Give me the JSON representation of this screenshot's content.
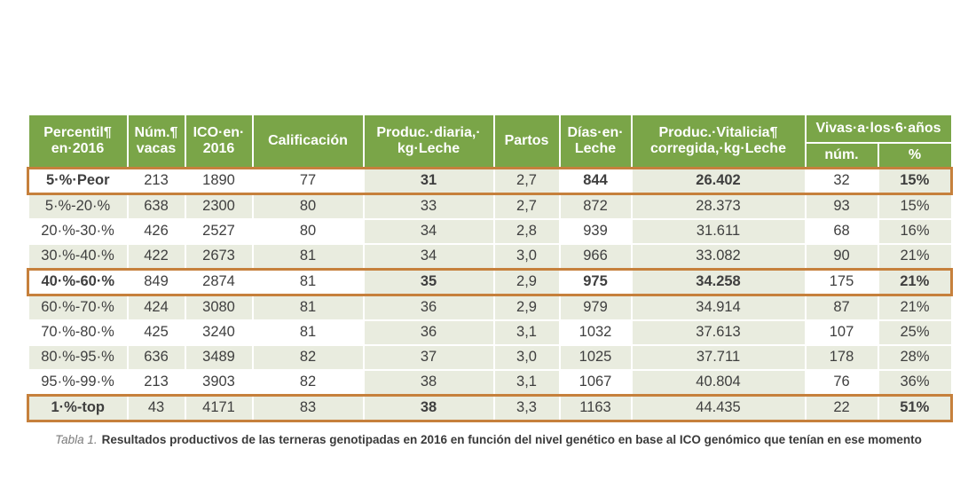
{
  "table": {
    "header": {
      "columns": [
        "Percentil¶\nen·2016",
        "Núm.¶\nvacas",
        "ICO·en·\n2016",
        "Calificación",
        "Produc.·diaria,·\nkg·Leche",
        "Partos",
        "Días·en·\nLeche",
        "Produc.·Vitalicia¶\ncorregida,·kg·Leche"
      ],
      "group": "Vivas·a·los·6·años",
      "sub": [
        "núm.",
        "%"
      ]
    },
    "accent_columns": [
      4,
      5,
      7,
      9
    ],
    "rows": [
      {
        "cells": [
          "5·%·Peor",
          "213",
          "1890",
          "77",
          "31",
          "2,7",
          "844",
          "26.402",
          "32",
          "15%"
        ],
        "highlighted": true,
        "bold_columns": [
          0,
          4,
          6,
          7,
          9
        ]
      },
      {
        "cells": [
          "5·%-20·%",
          "638",
          "2300",
          "80",
          "33",
          "2,7",
          "872",
          "28.373",
          "93",
          "15%"
        ],
        "highlighted": false,
        "bold_columns": []
      },
      {
        "cells": [
          "20·%-30·%",
          "426",
          "2527",
          "80",
          "34",
          "2,8",
          "939",
          "31.611",
          "68",
          "16%"
        ],
        "highlighted": false,
        "bold_columns": []
      },
      {
        "cells": [
          "30·%-40·%",
          "422",
          "2673",
          "81",
          "34",
          "3,0",
          "966",
          "33.082",
          "90",
          "21%"
        ],
        "highlighted": false,
        "bold_columns": []
      },
      {
        "cells": [
          "40·%-60·%",
          "849",
          "2874",
          "81",
          "35",
          "2,9",
          "975",
          "34.258",
          "175",
          "21%"
        ],
        "highlighted": true,
        "bold_columns": [
          0,
          4,
          6,
          7,
          9
        ]
      },
      {
        "cells": [
          "60·%-70·%",
          "424",
          "3080",
          "81",
          "36",
          "2,9",
          "979",
          "34.914",
          "87",
          "21%"
        ],
        "highlighted": false,
        "bold_columns": []
      },
      {
        "cells": [
          "70·%-80·%",
          "425",
          "3240",
          "81",
          "36",
          "3,1",
          "1032",
          "37.613",
          "107",
          "25%"
        ],
        "highlighted": false,
        "bold_columns": []
      },
      {
        "cells": [
          "80·%-95·%",
          "636",
          "3489",
          "82",
          "37",
          "3,0",
          "1025",
          "37.711",
          "178",
          "28%"
        ],
        "highlighted": false,
        "bold_columns": []
      },
      {
        "cells": [
          "95·%-99·%",
          "213",
          "3903",
          "82",
          "38",
          "3,1",
          "1067",
          "40.804",
          "76",
          "36%"
        ],
        "highlighted": false,
        "bold_columns": []
      },
      {
        "cells": [
          "1·%-top",
          "43",
          "4171",
          "83",
          "38",
          "3,3",
          "1163",
          "44.435",
          "22",
          "51%"
        ],
        "highlighted": true,
        "bold_columns": [
          0,
          4,
          9
        ]
      }
    ],
    "caption": {
      "label": "Tabla 1.",
      "text": "Resultados productivos de las terneras genotipadas en 2016 en función del nivel genético en base al ICO genómico que tenían en ese momento"
    },
    "colors": {
      "header_bg": "#7aa548",
      "header_text": "#ffffff",
      "band_green": "#e9ecdf",
      "band_white": "#ffffff",
      "highlight_border": "#c6803c",
      "body_text": "#3f3f3f"
    }
  }
}
